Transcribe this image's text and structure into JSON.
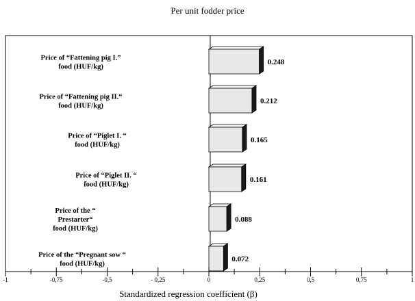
{
  "chart_data": {
    "type": "bar",
    "orientation": "horizontal",
    "title": "Per unit fodder price",
    "xlabel": "Standardized regression coefficient (β)",
    "ylabel": "",
    "xlim": [
      -1,
      1
    ],
    "grid": false,
    "bar_color": "#e8e8e8",
    "bar_side_color": "#1a1a1a",
    "x_ticks": [
      "-1",
      "-0,75",
      "-0,5",
      "- 0,25",
      "0",
      "0,25",
      "0,5",
      "0,75",
      "1"
    ],
    "categories": [
      [
        "Price of  “Fattening pig  I.”",
        "food (HUF/kg)"
      ],
      [
        "Price of  “Fattening pig  II.“",
        "food (HUF/kg)"
      ],
      [
        "Price of  “Piglet  I. “",
        "food (HUF/kg)"
      ],
      [
        "Price of  “Piglet  II. “",
        "food (HUF/kg)"
      ],
      [
        "Price of the  “",
        "Prestarter“",
        "food (HUF/kg)"
      ],
      [
        "Price of the  “Pregnant sow  “",
        "food (HUF/kg)"
      ]
    ],
    "values": [
      0.248,
      0.212,
      0.165,
      0.161,
      0.088,
      0.072
    ],
    "value_labels": [
      "0.248",
      "0.212",
      "0.165",
      "0.161",
      "0.088",
      "0.072"
    ]
  }
}
